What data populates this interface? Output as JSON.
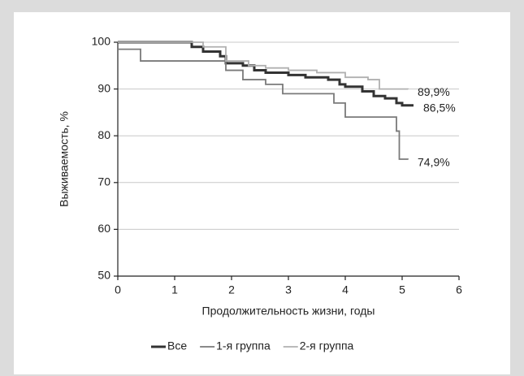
{
  "chart_data": {
    "type": "line",
    "step": true,
    "x_label": "Продолжительность жизни, годы",
    "y_label": "Выживаемость, %",
    "xlim": [
      0,
      6
    ],
    "xticks": [
      0,
      1,
      2,
      3,
      4,
      5,
      6
    ],
    "ylim": [
      50,
      100
    ],
    "yticks": [
      50,
      60,
      70,
      80,
      90,
      100
    ],
    "grid": true,
    "legend": "bottom",
    "series": [
      {
        "name": "Все",
        "color": "#333333",
        "width": 3,
        "x": [
          0,
          1.3,
          1.5,
          1.8,
          1.9,
          2.2,
          2.4,
          2.6,
          3.0,
          3.3,
          3.7,
          3.9,
          4.0,
          4.3,
          4.5,
          4.7,
          4.9,
          5.0,
          5.2
        ],
        "values": [
          100,
          99,
          98,
          97,
          95.5,
          95,
          94,
          93.5,
          93,
          92.5,
          92,
          91,
          90.5,
          89.5,
          88.5,
          88,
          87,
          86.5,
          86.5
        ],
        "value_labels": [
          null,
          null,
          null,
          null,
          null,
          null,
          null,
          null,
          null,
          null,
          null,
          null,
          null,
          null,
          null,
          null,
          null,
          null,
          "86,5%"
        ]
      },
      {
        "name": "1-я группа",
        "color": "#7a7a7a",
        "width": 1.8,
        "x": [
          0,
          0.4,
          1.8,
          1.9,
          2.2,
          2.6,
          2.9,
          3.6,
          3.8,
          4.0,
          4.7,
          4.9,
          4.95,
          5.1
        ],
        "values": [
          98.5,
          96,
          96,
          94,
          92,
          91,
          89,
          89,
          87,
          84,
          84,
          81,
          75,
          74.9
        ],
        "value_labels": [
          null,
          null,
          null,
          null,
          null,
          null,
          null,
          null,
          null,
          null,
          null,
          null,
          null,
          "74,9%"
        ]
      },
      {
        "name": "2-я группа",
        "color": "#b0b0b0",
        "width": 1.8,
        "x": [
          0,
          1.3,
          1.5,
          1.9,
          2.3,
          2.6,
          3.0,
          3.5,
          4.0,
          4.4,
          4.6,
          5.1
        ],
        "values": [
          100,
          100,
          99,
          96,
          95,
          94.5,
          94,
          93.5,
          92.5,
          92,
          90,
          89.9
        ],
        "value_labels": [
          null,
          null,
          null,
          null,
          null,
          null,
          null,
          null,
          null,
          null,
          null,
          "89,9%"
        ]
      }
    ]
  }
}
